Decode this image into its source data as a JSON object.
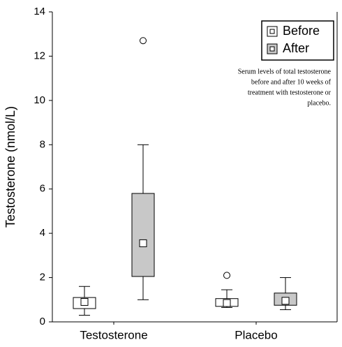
{
  "chart_data": {
    "type": "box",
    "y_label": "Testosterone (nmol/L)",
    "categories": [
      "Testosterone",
      "Placebo"
    ],
    "ylim": [
      0,
      14
    ],
    "yticks": [
      0,
      2,
      4,
      6,
      8,
      10,
      12,
      14
    ],
    "legend": "top-right",
    "annotation": [
      "Serum levels of total testosterone",
      "before and after 10 weeks of",
      "treatment with testosterone or",
      "placebo."
    ],
    "series": [
      {
        "name": "Before",
        "color": "#ffffff",
        "whisker_low": [
          0.3,
          0.65
        ],
        "q1": [
          0.6,
          0.7
        ],
        "median": [
          0.9,
          0.85
        ],
        "q3": [
          1.1,
          1.05
        ],
        "whisker_high": [
          1.6,
          1.45
        ],
        "outliers": [
          [],
          [
            2.1
          ]
        ]
      },
      {
        "name": "After",
        "color": "#c8c8c8",
        "whisker_low": [
          1.0,
          0.55
        ],
        "q1": [
          2.05,
          0.75
        ],
        "median": [
          3.55,
          0.95
        ],
        "q3": [
          5.8,
          1.3
        ],
        "whisker_high": [
          8.0,
          2.0
        ],
        "outliers": [
          [
            12.7
          ],
          []
        ]
      }
    ]
  }
}
